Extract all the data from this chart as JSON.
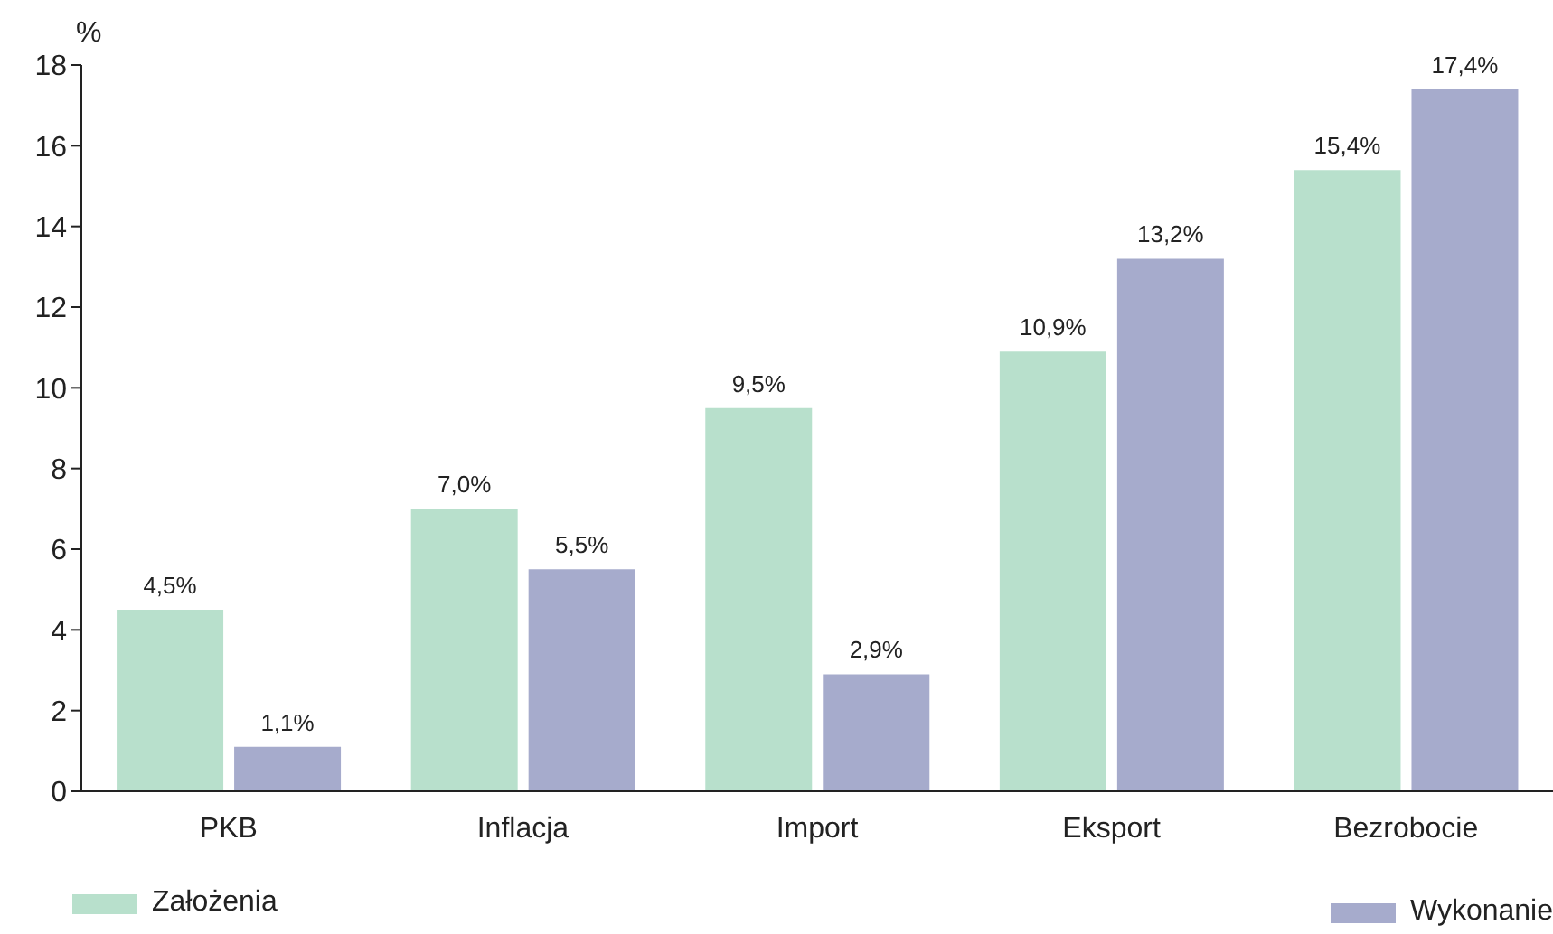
{
  "chart_data": {
    "type": "bar",
    "ylabel": "%",
    "categories": [
      "PKB",
      "Inflacja",
      "Import",
      "Eksport",
      "Bezrobocie"
    ],
    "series": [
      {
        "name": "Założenia",
        "color": "#b8e0cc",
        "values": [
          4.5,
          7.0,
          9.5,
          10.9,
          15.4
        ],
        "value_labels": [
          "4,5%",
          "7,0%",
          "9,5%",
          "10,9%",
          "15,4%"
        ]
      },
      {
        "name": "Wykonanie",
        "color": "#a6abcc",
        "values": [
          1.1,
          5.5,
          2.9,
          13.2,
          17.4
        ],
        "value_labels": [
          "1,1%",
          "5,5%",
          "2,9%",
          "13,2%",
          "17,4%"
        ]
      }
    ],
    "ylim": [
      0,
      18
    ],
    "yticks": [
      0,
      2,
      4,
      6,
      8,
      10,
      12,
      14,
      16,
      18
    ],
    "grid": false,
    "legend": "bottom"
  }
}
